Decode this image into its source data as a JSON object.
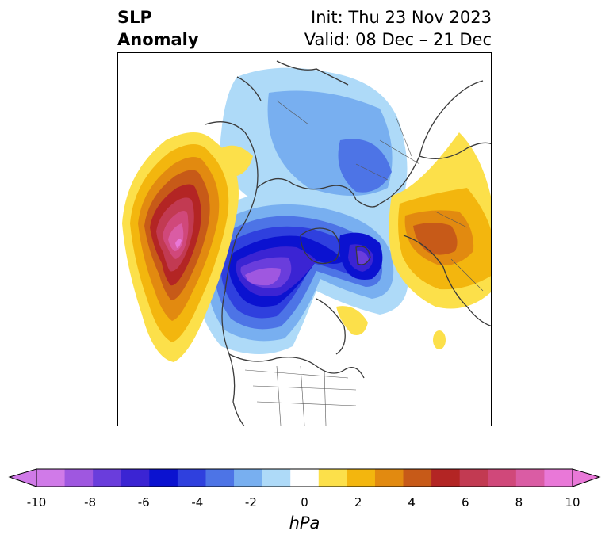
{
  "title": {
    "variable_line1": "SLP",
    "variable_line2": "Anomaly",
    "init_line": "Init: Thu 23 Nov 2023",
    "valid_line": "Valid: 08 Dec – 21 Dec"
  },
  "colorbar": {
    "units": "hPa",
    "ticks": [
      "-10",
      "-8",
      "-6",
      "-4",
      "-2",
      "0",
      "2",
      "4",
      "6",
      "8",
      "10"
    ],
    "levels": [
      -10,
      -9,
      -8,
      -7,
      -6,
      -5,
      -4,
      -3,
      -2,
      -1,
      1,
      2,
      3,
      4,
      5,
      6,
      7,
      8,
      9,
      10
    ],
    "colors": [
      "#d07ae8",
      "#9f57e0",
      "#6a3ddc",
      "#3b24d3",
      "#0b12d0",
      "#2f40de",
      "#4d74e6",
      "#78aff0",
      "#aedaf8",
      "#ffffff",
      "#fce04a",
      "#f3b60e",
      "#e28a10",
      "#c75a18",
      "#b32524",
      "#c23a52",
      "#d0487a",
      "#da5ca4",
      "#e978d8"
    ],
    "under_color": "#d07ae8",
    "over_color": "#e978d8"
  },
  "map": {
    "projection": "north-polar-stereographic",
    "features": [
      "coastlines",
      "country-borders",
      "state-borders"
    ]
  }
}
